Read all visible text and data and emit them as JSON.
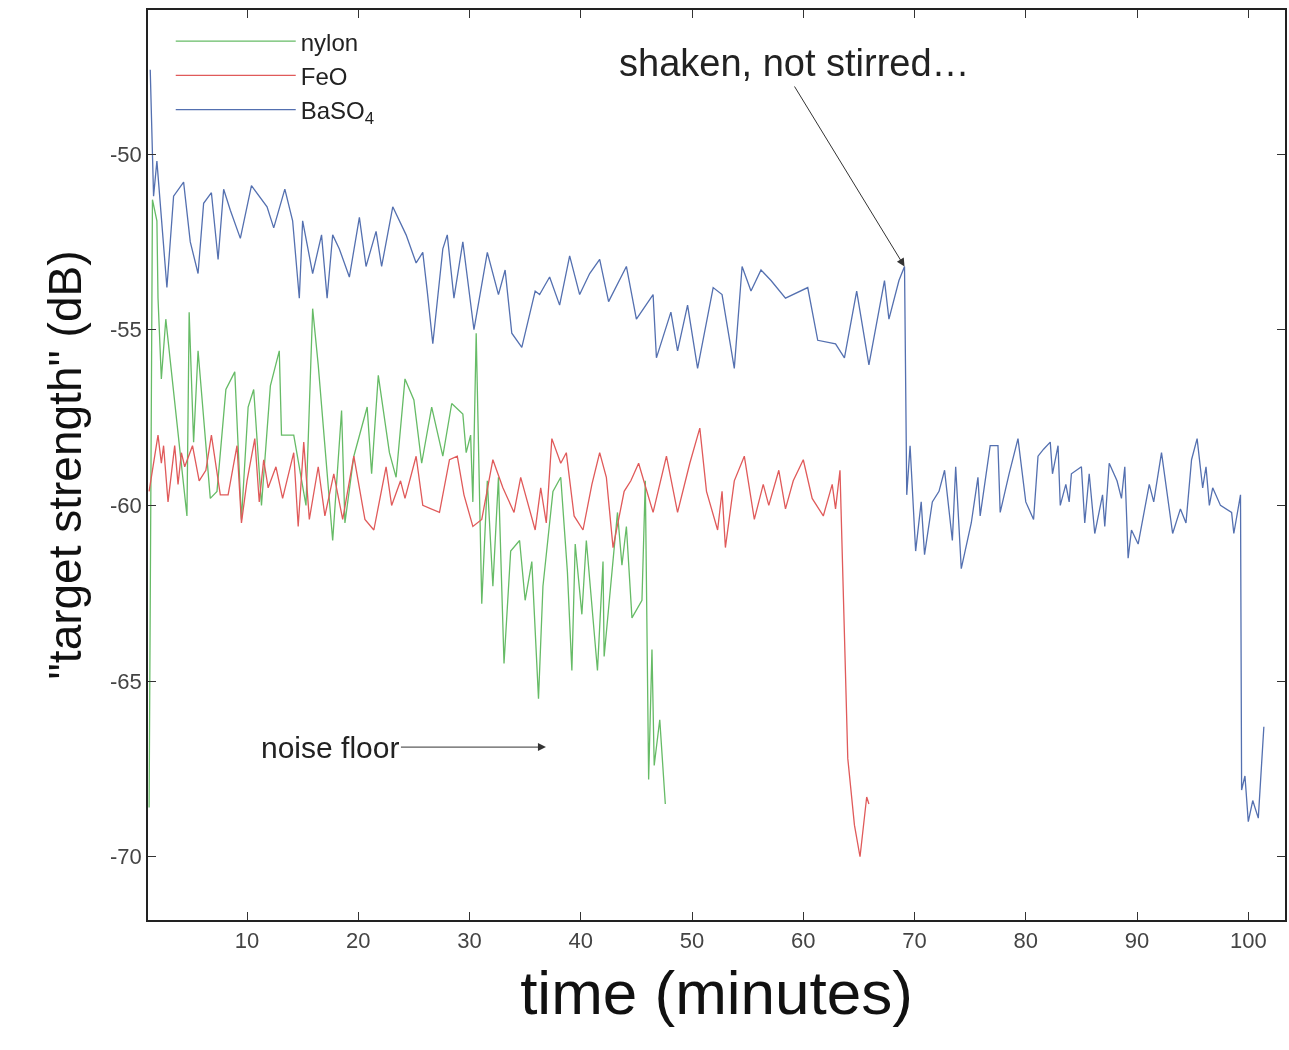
{
  "chart_data": {
    "type": "line",
    "xlabel": "time (minutes)",
    "ylabel": "\"target strength\" (dB)",
    "xlim": [
      1.1,
      103.3
    ],
    "ylim": [
      -71.8,
      -45.9
    ],
    "xticks": [
      10,
      20,
      30,
      40,
      50,
      60,
      70,
      80,
      90,
      100
    ],
    "yticks": [
      -50,
      -55,
      -60,
      -65,
      -70
    ],
    "legend": "top left",
    "marker": "none",
    "line_style": "solid",
    "annotations": [
      {
        "text": "shaken, not stirred…",
        "x": 69.1,
        "y": -53.2
      },
      "noise floor"
    ],
    "series": [
      {
        "name": "nylon",
        "color": "#66bb66",
        "x": [
          1.2,
          1.5,
          1.9,
          2.0,
          2.3,
          2.7,
          4.6,
          4.8,
          5.2,
          5.6,
          6.7,
          7.3,
          8.1,
          8.9,
          9.5,
          10.1,
          10.6,
          11.3,
          12.1,
          12.9,
          13.1,
          14.2,
          15.3,
          15.9,
          16.4,
          17.7,
          18.5,
          18.8,
          19.6,
          20.8,
          21.2,
          21.8,
          22.8,
          23.4,
          24.2,
          25.0,
          25.7,
          26.6,
          27.6,
          28.4,
          29.4,
          29.7,
          30.1,
          30.3,
          30.6,
          31.1,
          31.6,
          32.1,
          32.6,
          33.1,
          33.7,
          34.5,
          35.0,
          35.6,
          36.2,
          36.6,
          37.5,
          38.2,
          38.8,
          39.2,
          39.5,
          40.1,
          40.5,
          41.5,
          42.0,
          42.1,
          43.3,
          43.7,
          44.1,
          44.6,
          45.5,
          45.8,
          46.1,
          46.4,
          46.6,
          47.1,
          47.6
        ],
        "values": [
          -68.6,
          -51.3,
          -51.9,
          -54.1,
          -56.4,
          -54.7,
          -60.3,
          -54.5,
          -58.2,
          -55.6,
          -59.8,
          -59.6,
          -56.7,
          -56.2,
          -60.4,
          -57.2,
          -56.7,
          -60.0,
          -56.6,
          -55.6,
          -58.0,
          -58.0,
          -60.0,
          -54.4,
          -56.0,
          -61.0,
          -57.3,
          -60.5,
          -58.6,
          -57.2,
          -59.1,
          -56.3,
          -58.5,
          -59.2,
          -56.4,
          -57.0,
          -58.8,
          -57.2,
          -58.6,
          -57.1,
          -57.4,
          -58.5,
          -58.0,
          -59.9,
          -55.1,
          -62.8,
          -59.3,
          -62.3,
          -59.2,
          -64.5,
          -61.3,
          -61.0,
          -62.7,
          -61.6,
          -65.5,
          -62.3,
          -59.6,
          -59.2,
          -61.9,
          -64.7,
          -61.1,
          -63.1,
          -61.0,
          -64.7,
          -61.6,
          -64.3,
          -60.2,
          -61.7,
          -60.6,
          -63.2,
          -62.7,
          -59.3,
          -67.8,
          -64.1,
          -67.4,
          -66.1,
          -68.5
        ]
      },
      {
        "name": "FeO",
        "color": "#e05a5a",
        "x": [
          1.2,
          2.0,
          2.3,
          2.5,
          2.9,
          3.5,
          3.8,
          4.1,
          4.4,
          5.1,
          5.7,
          6.3,
          6.8,
          7.6,
          8.3,
          9.1,
          9.5,
          10.0,
          10.7,
          11.1,
          11.5,
          11.9,
          12.6,
          13.2,
          14.2,
          14.6,
          15.1,
          15.6,
          16.4,
          17.0,
          17.8,
          18.6,
          19.6,
          20.6,
          21.4,
          22.5,
          23.0,
          23.8,
          24.2,
          25.2,
          25.8,
          27.3,
          28.2,
          28.9,
          29.5,
          30.3,
          31.1,
          32.1,
          33.0,
          34.0,
          34.6,
          35.9,
          36.4,
          36.9,
          37.4,
          38.2,
          38.7,
          39.4,
          40.2,
          41.0,
          41.7,
          42.3,
          42.9,
          43.9,
          44.5,
          45.2,
          46.5,
          47.7,
          48.7,
          49.8,
          50.7,
          51.3,
          52.3,
          52.7,
          53.0,
          53.8,
          54.7,
          55.6,
          56.4,
          56.9,
          57.8,
          58.4,
          59.1,
          60.0,
          60.8,
          61.8,
          62.6,
          62.9,
          63.3,
          64.0,
          64.6,
          65.1,
          65.7,
          65.9
        ],
        "values": [
          -59.6,
          -58.0,
          -58.8,
          -58.3,
          -59.9,
          -58.3,
          -59.4,
          -58.5,
          -58.9,
          -58.3,
          -59.3,
          -59.0,
          -58.0,
          -59.7,
          -59.7,
          -58.3,
          -60.5,
          -59.3,
          -58.1,
          -59.9,
          -58.7,
          -59.5,
          -58.9,
          -59.8,
          -58.5,
          -60.6,
          -58.2,
          -60.4,
          -58.9,
          -60.3,
          -59.1,
          -60.4,
          -58.6,
          -60.4,
          -60.7,
          -58.9,
          -60.0,
          -59.3,
          -59.8,
          -58.6,
          -60.0,
          -60.2,
          -58.7,
          -58.6,
          -59.7,
          -60.6,
          -60.4,
          -58.7,
          -59.5,
          -60.2,
          -59.2,
          -60.7,
          -59.5,
          -60.5,
          -58.1,
          -58.8,
          -58.5,
          -60.3,
          -60.7,
          -59.4,
          -58.5,
          -59.2,
          -61.2,
          -59.6,
          -59.3,
          -58.8,
          -60.2,
          -58.6,
          -60.2,
          -58.8,
          -57.8,
          -59.6,
          -60.7,
          -59.6,
          -61.2,
          -59.3,
          -58.6,
          -60.4,
          -59.4,
          -60.0,
          -59.0,
          -60.1,
          -59.3,
          -58.7,
          -59.8,
          -60.3,
          -59.4,
          -60.1,
          -59.0,
          -67.2,
          -69.1,
          -70.0,
          -68.3,
          -68.5
        ]
      },
      {
        "name": "BaSO$_{4}$",
        "color": "#5470b0",
        "x": [
          1.3,
          1.6,
          1.9,
          2.8,
          3.4,
          4.3,
          4.9,
          5.6,
          6.1,
          6.8,
          7.4,
          7.9,
          8.5,
          9.4,
          10.4,
          11.8,
          12.4,
          13.4,
          14.1,
          14.7,
          15.0,
          15.9,
          16.7,
          17.2,
          17.7,
          18.3,
          19.2,
          20.1,
          20.7,
          21.6,
          22.1,
          23.1,
          24.3,
          25.2,
          25.8,
          26.2,
          26.7,
          27.6,
          28.0,
          28.6,
          29.4,
          30.4,
          31.6,
          32.6,
          33.2,
          33.8,
          34.7,
          35.9,
          36.3,
          37.2,
          38.1,
          39.0,
          39.9,
          40.8,
          41.7,
          42.5,
          44.1,
          45.0,
          46.5,
          46.8,
          48.1,
          48.7,
          49.6,
          50.5,
          51.9,
          52.7,
          53.8,
          54.5,
          55.3,
          56.2,
          57.1,
          58.4,
          60.4,
          61.3,
          62.9,
          63.7,
          64.8,
          65.9,
          67.3,
          67.7,
          68.6,
          69.1,
          69.3,
          69.6,
          70.1,
          70.6,
          70.9,
          71.6,
          72.2,
          72.7,
          73.4,
          73.7,
          74.2,
          75.1,
          75.7,
          75.9,
          76.8,
          77.5,
          77.7,
          78.5,
          79.3,
          80.0,
          80.7,
          81.1,
          81.6,
          82.2,
          82.4,
          82.9,
          83.1,
          83.6,
          83.9,
          84.1,
          85.0,
          85.3,
          85.7,
          86.2,
          86.9,
          87.1,
          87.5,
          88.2,
          88.6,
          88.9,
          89.2,
          89.5,
          90.1,
          91.1,
          91.5,
          92.2,
          93.2,
          93.9,
          94.4,
          94.9,
          95.4,
          95.9,
          96.2,
          96.5,
          96.8,
          97.5,
          98.5,
          98.7,
          99.3,
          99.4,
          99.7,
          100.0,
          100.4,
          100.9,
          101.4
        ],
        "values": [
          -47.6,
          -51.2,
          -50.2,
          -53.8,
          -51.2,
          -50.8,
          -52.5,
          -53.4,
          -51.4,
          -51.1,
          -53.0,
          -51.0,
          -51.6,
          -52.4,
          -50.9,
          -51.5,
          -52.1,
          -51.0,
          -51.9,
          -54.1,
          -51.9,
          -53.4,
          -52.3,
          -54.1,
          -52.3,
          -52.7,
          -53.5,
          -51.8,
          -53.2,
          -52.2,
          -53.2,
          -51.5,
          -52.3,
          -53.1,
          -52.8,
          -53.9,
          -55.4,
          -52.7,
          -52.3,
          -54.1,
          -52.5,
          -55.0,
          -52.8,
          -54.0,
          -53.3,
          -55.1,
          -55.5,
          -53.9,
          -54.0,
          -53.5,
          -54.3,
          -52.9,
          -54.0,
          -53.4,
          -53.0,
          -54.2,
          -53.2,
          -54.7,
          -54.0,
          -55.8,
          -54.5,
          -55.6,
          -54.3,
          -56.1,
          -53.8,
          -54.0,
          -56.1,
          -53.2,
          -53.9,
          -53.3,
          -53.6,
          -54.1,
          -53.8,
          -55.3,
          -55.4,
          -55.8,
          -53.9,
          -56.0,
          -53.6,
          -54.7,
          -53.6,
          -53.2,
          -59.7,
          -58.3,
          -61.3,
          -59.9,
          -61.4,
          -59.9,
          -59.6,
          -59.0,
          -61.0,
          -58.9,
          -61.8,
          -60.5,
          -59.2,
          -60.3,
          -58.3,
          -58.3,
          -60.2,
          -59.1,
          -58.1,
          -59.9,
          -60.4,
          -58.6,
          -58.4,
          -58.2,
          -59.1,
          -58.3,
          -60.0,
          -59.4,
          -59.9,
          -59.1,
          -58.9,
          -60.5,
          -59.1,
          -60.8,
          -59.7,
          -60.6,
          -58.8,
          -59.3,
          -59.8,
          -58.9,
          -61.5,
          -60.7,
          -61.1,
          -59.4,
          -59.9,
          -58.5,
          -60.8,
          -60.1,
          -60.5,
          -58.7,
          -58.1,
          -59.5,
          -58.9,
          -60.0,
          -59.5,
          -60.0,
          -60.2,
          -60.8,
          -59.7,
          -68.1,
          -67.7,
          -69.0,
          -68.4,
          -68.9,
          -66.3
        ]
      }
    ]
  }
}
